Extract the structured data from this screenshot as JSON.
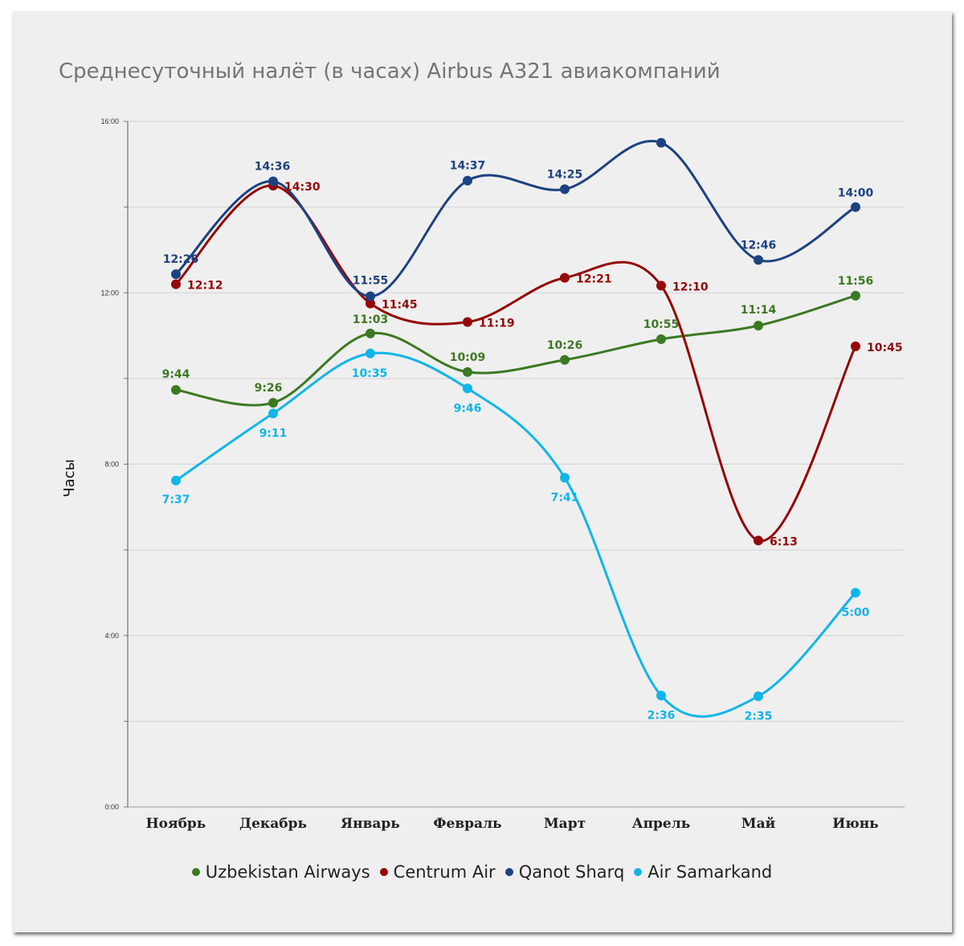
{
  "chart_data": {
    "type": "line",
    "title": "Среднесуточный налёт (в часах) Airbus A321 авиакомпаний",
    "ylabel": "Часы",
    "xlabel": "",
    "categories": [
      "Ноябрь",
      "Декабрь",
      "Январь",
      "Февраль",
      "Март",
      "Апрель",
      "Май",
      "Июнь"
    ],
    "y_ticks": [
      "0:00",
      "4:00",
      "8:00",
      "12:00",
      "16:00"
    ],
    "ylim": [
      0,
      16
    ],
    "grid": true,
    "legend_position": "bottom",
    "series": [
      {
        "name": "Uzbekistan Airways",
        "color": "#3b7a22",
        "values": [
          9.733,
          9.433,
          11.05,
          10.15,
          10.433,
          10.917,
          11.233,
          11.933
        ],
        "labels": [
          "9:44",
          "9:26",
          "11:03",
          "10:09",
          "10:26",
          "10:55",
          "11:14",
          "11:56"
        ]
      },
      {
        "name": "Centrum Air",
        "color": "#940808",
        "values": [
          12.2,
          14.5,
          11.75,
          11.317,
          12.35,
          12.167,
          6.217,
          10.75
        ],
        "labels": [
          "12:12",
          "14:30",
          "11:45",
          "11:19",
          "12:21",
          "12:10",
          "6:13",
          "10:45"
        ]
      },
      {
        "name": "Qanot Sharq",
        "color": "#1c4281",
        "values": [
          12.433,
          14.6,
          11.917,
          14.617,
          14.417,
          15.5,
          12.767,
          14.0
        ],
        "labels": [
          "12:26",
          "14:36",
          "11:55",
          "14:37",
          "14:25",
          "",
          "12:46",
          "14:00"
        ]
      },
      {
        "name": "Air Samarkand",
        "color": "#11b5ea",
        "values": [
          7.617,
          9.183,
          10.583,
          9.767,
          7.683,
          2.6,
          2.583,
          5.0
        ],
        "labels": [
          "7:37",
          "9:11",
          "10:35",
          "9:46",
          "7:41",
          "2:36",
          "2:35",
          "5:00"
        ]
      }
    ]
  }
}
